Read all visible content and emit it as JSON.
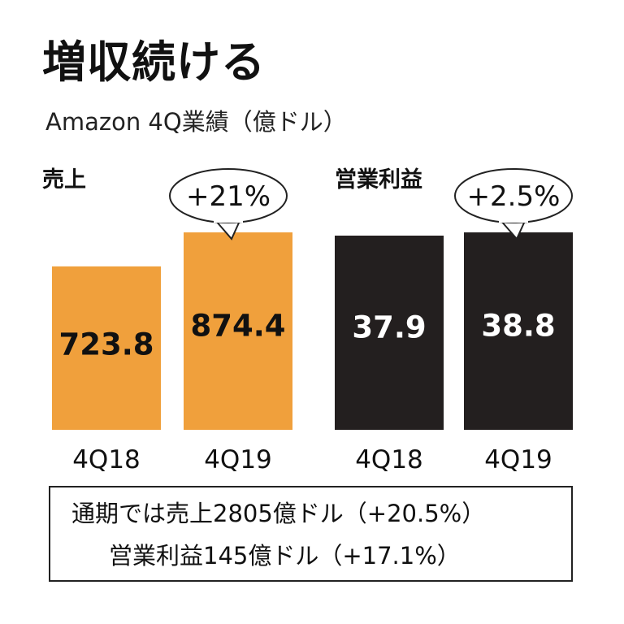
{
  "title": "増収続ける",
  "subtitle": "Amazon 4Q業績（億ドル）",
  "chart_data": [
    {
      "type": "bar",
      "title": "売上",
      "categories": [
        "4Q18",
        "4Q19"
      ],
      "values": [
        723.8,
        874.4
      ],
      "value_labels": [
        "723.8",
        "874.4"
      ],
      "ylim": [
        0,
        900
      ],
      "annotation": "+21%",
      "color": "#f0a03c",
      "label_color": "#111111"
    },
    {
      "type": "bar",
      "title": "営業利益",
      "categories": [
        "4Q18",
        "4Q19"
      ],
      "values": [
        37.9,
        38.8
      ],
      "value_labels": [
        "37.9",
        "38.8"
      ],
      "ylim": [
        0,
        40
      ],
      "annotation": "+2.5%",
      "color": "#231f1f",
      "label_color": "#ffffff"
    }
  ],
  "summary": {
    "line1": "通期では売上2805億ドル（+20.5%）",
    "line2": "営業利益145億ドル（+17.1%）"
  }
}
